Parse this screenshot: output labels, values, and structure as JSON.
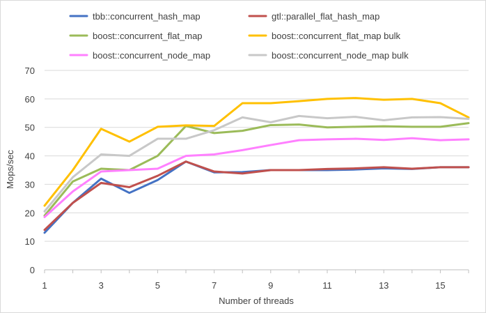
{
  "chart_data": {
    "type": "line",
    "xlabel": "Number of threads",
    "ylabel": "Mops/sec",
    "xlim": [
      1,
      16
    ],
    "ylim": [
      0,
      70
    ],
    "x_ticks": [
      1,
      3,
      5,
      7,
      9,
      11,
      13,
      15
    ],
    "y_ticks": [
      0,
      10,
      20,
      30,
      40,
      50,
      60,
      70
    ],
    "grid": "horizontal",
    "legend_position": "top",
    "x": [
      1,
      2,
      3,
      4,
      5,
      6,
      7,
      8,
      9,
      10,
      11,
      12,
      13,
      14,
      15,
      16
    ],
    "series": [
      {
        "name": "tbb::concurrent_hash_map",
        "color": "#4472c4",
        "values": [
          13,
          23.5,
          32,
          27,
          31.5,
          38,
          34.2,
          34.3,
          35,
          35,
          35,
          35.2,
          35.6,
          35.4,
          36,
          36
        ]
      },
      {
        "name": "gtl::parallel_flat_hash_map",
        "color": "#c0504d",
        "values": [
          14,
          23.5,
          30.5,
          29,
          33,
          38,
          34.5,
          33.8,
          35,
          35,
          35.4,
          35.6,
          36,
          35.5,
          36,
          36
        ]
      },
      {
        "name": "boost::concurrent_flat_map",
        "color": "#9bbb59",
        "values": [
          19,
          31,
          35.5,
          35,
          40,
          50.5,
          48,
          48.8,
          50.8,
          51,
          50,
          50.2,
          50.4,
          50.2,
          50.2,
          51.5
        ]
      },
      {
        "name": "boost::concurrent_flat_map bulk",
        "color": "#ffc000",
        "values": [
          22.5,
          35,
          49.5,
          45,
          50.2,
          50.7,
          50.5,
          58.5,
          58.5,
          59.2,
          60,
          60.3,
          59.7,
          60,
          58.5,
          53.5
        ]
      },
      {
        "name": "boost::concurrent_node_map",
        "color": "#ff80ff",
        "values": [
          18.5,
          27.5,
          34.5,
          35,
          35.5,
          40,
          40.5,
          42,
          43.8,
          45.5,
          45.8,
          46,
          45.6,
          46.2,
          45.5,
          45.8
        ]
      },
      {
        "name": "boost::concurrent_node_map bulk",
        "color": "#c8c8c8",
        "values": [
          20.5,
          32.5,
          40.5,
          40,
          46,
          46,
          49,
          53.5,
          51.8,
          54,
          53.2,
          53.7,
          52.5,
          53.5,
          53.6,
          53
        ]
      }
    ]
  }
}
